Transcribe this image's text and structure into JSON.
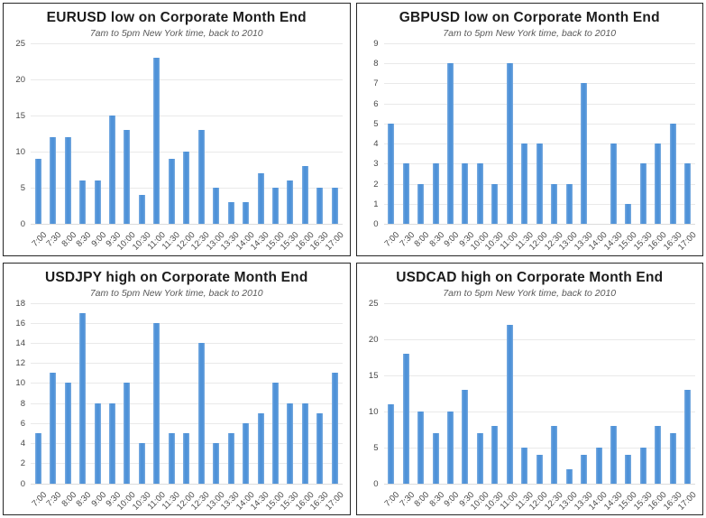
{
  "page": {
    "background_color": "#ffffff",
    "panel_border_color": "#262626",
    "gridline_color": "#e9e9e9"
  },
  "x_categories": [
    "7:00",
    "7:30",
    "8:00",
    "8:30",
    "9:00",
    "9:30",
    "10:00",
    "10:30",
    "11:00",
    "11:30",
    "12:00",
    "12:30",
    "13:00",
    "13:30",
    "14:00",
    "14:30",
    "15:00",
    "15:30",
    "16:00",
    "16:30",
    "17:00"
  ],
  "chart_data": [
    {
      "type": "bar",
      "title": "EURUSD low on Corporate Month End",
      "subtitle": "7am to 5pm New York time, back to 2010",
      "xlabel": "",
      "ylabel": "",
      "ylim": [
        0,
        25
      ],
      "yticks": [
        0,
        5,
        10,
        15,
        20,
        25
      ],
      "values": [
        9,
        12,
        12,
        6,
        6,
        15,
        13,
        4,
        23,
        9,
        10,
        13,
        5,
        3,
        3,
        7,
        5,
        6,
        8,
        5,
        5
      ],
      "bar_color": "#5b9ad5",
      "grid": "horizontal",
      "legend": "none",
      "xtick_rotation": -45
    },
    {
      "type": "bar",
      "title": "GBPUSD low on Corporate Month End",
      "subtitle": "7am to 5pm New York time, back to 2010",
      "xlabel": "",
      "ylabel": "",
      "ylim": [
        0,
        9
      ],
      "yticks": [
        0,
        1,
        2,
        3,
        4,
        5,
        6,
        7,
        8,
        9
      ],
      "values": [
        5,
        3,
        2,
        3,
        8,
        3,
        3,
        2,
        8,
        4,
        4,
        2,
        2,
        7,
        0,
        4,
        1,
        3,
        4,
        5,
        3
      ],
      "bar_color": "#5b9ad5",
      "grid": "horizontal",
      "legend": "none",
      "xtick_rotation": -45
    },
    {
      "type": "bar",
      "title": "USDJPY high on Corporate Month End",
      "subtitle": "7am to 5pm New York time, back to 2010",
      "xlabel": "",
      "ylabel": "",
      "ylim": [
        0,
        18
      ],
      "yticks": [
        0,
        2,
        4,
        6,
        8,
        10,
        12,
        14,
        16,
        18
      ],
      "values": [
        5,
        11,
        10,
        17,
        8,
        8,
        10,
        4,
        16,
        5,
        5,
        14,
        4,
        5,
        6,
        7,
        10,
        8,
        8,
        7,
        11
      ],
      "bar_color": "#5b9ad5",
      "grid": "horizontal",
      "legend": "none",
      "xtick_rotation": -45
    },
    {
      "type": "bar",
      "title": "USDCAD high on Corporate Month End",
      "subtitle": "7am to 5pm New York time, back to 2010",
      "xlabel": "",
      "ylabel": "",
      "ylim": [
        0,
        25
      ],
      "yticks": [
        0,
        5,
        10,
        15,
        20,
        25
      ],
      "values": [
        11,
        18,
        10,
        7,
        10,
        13,
        7,
        8,
        22,
        5,
        4,
        8,
        2,
        4,
        5,
        8,
        4,
        5,
        8,
        7,
        13
      ],
      "bar_color": "#5b9ad5",
      "grid": "horizontal",
      "legend": "none",
      "xtick_rotation": -45
    }
  ]
}
